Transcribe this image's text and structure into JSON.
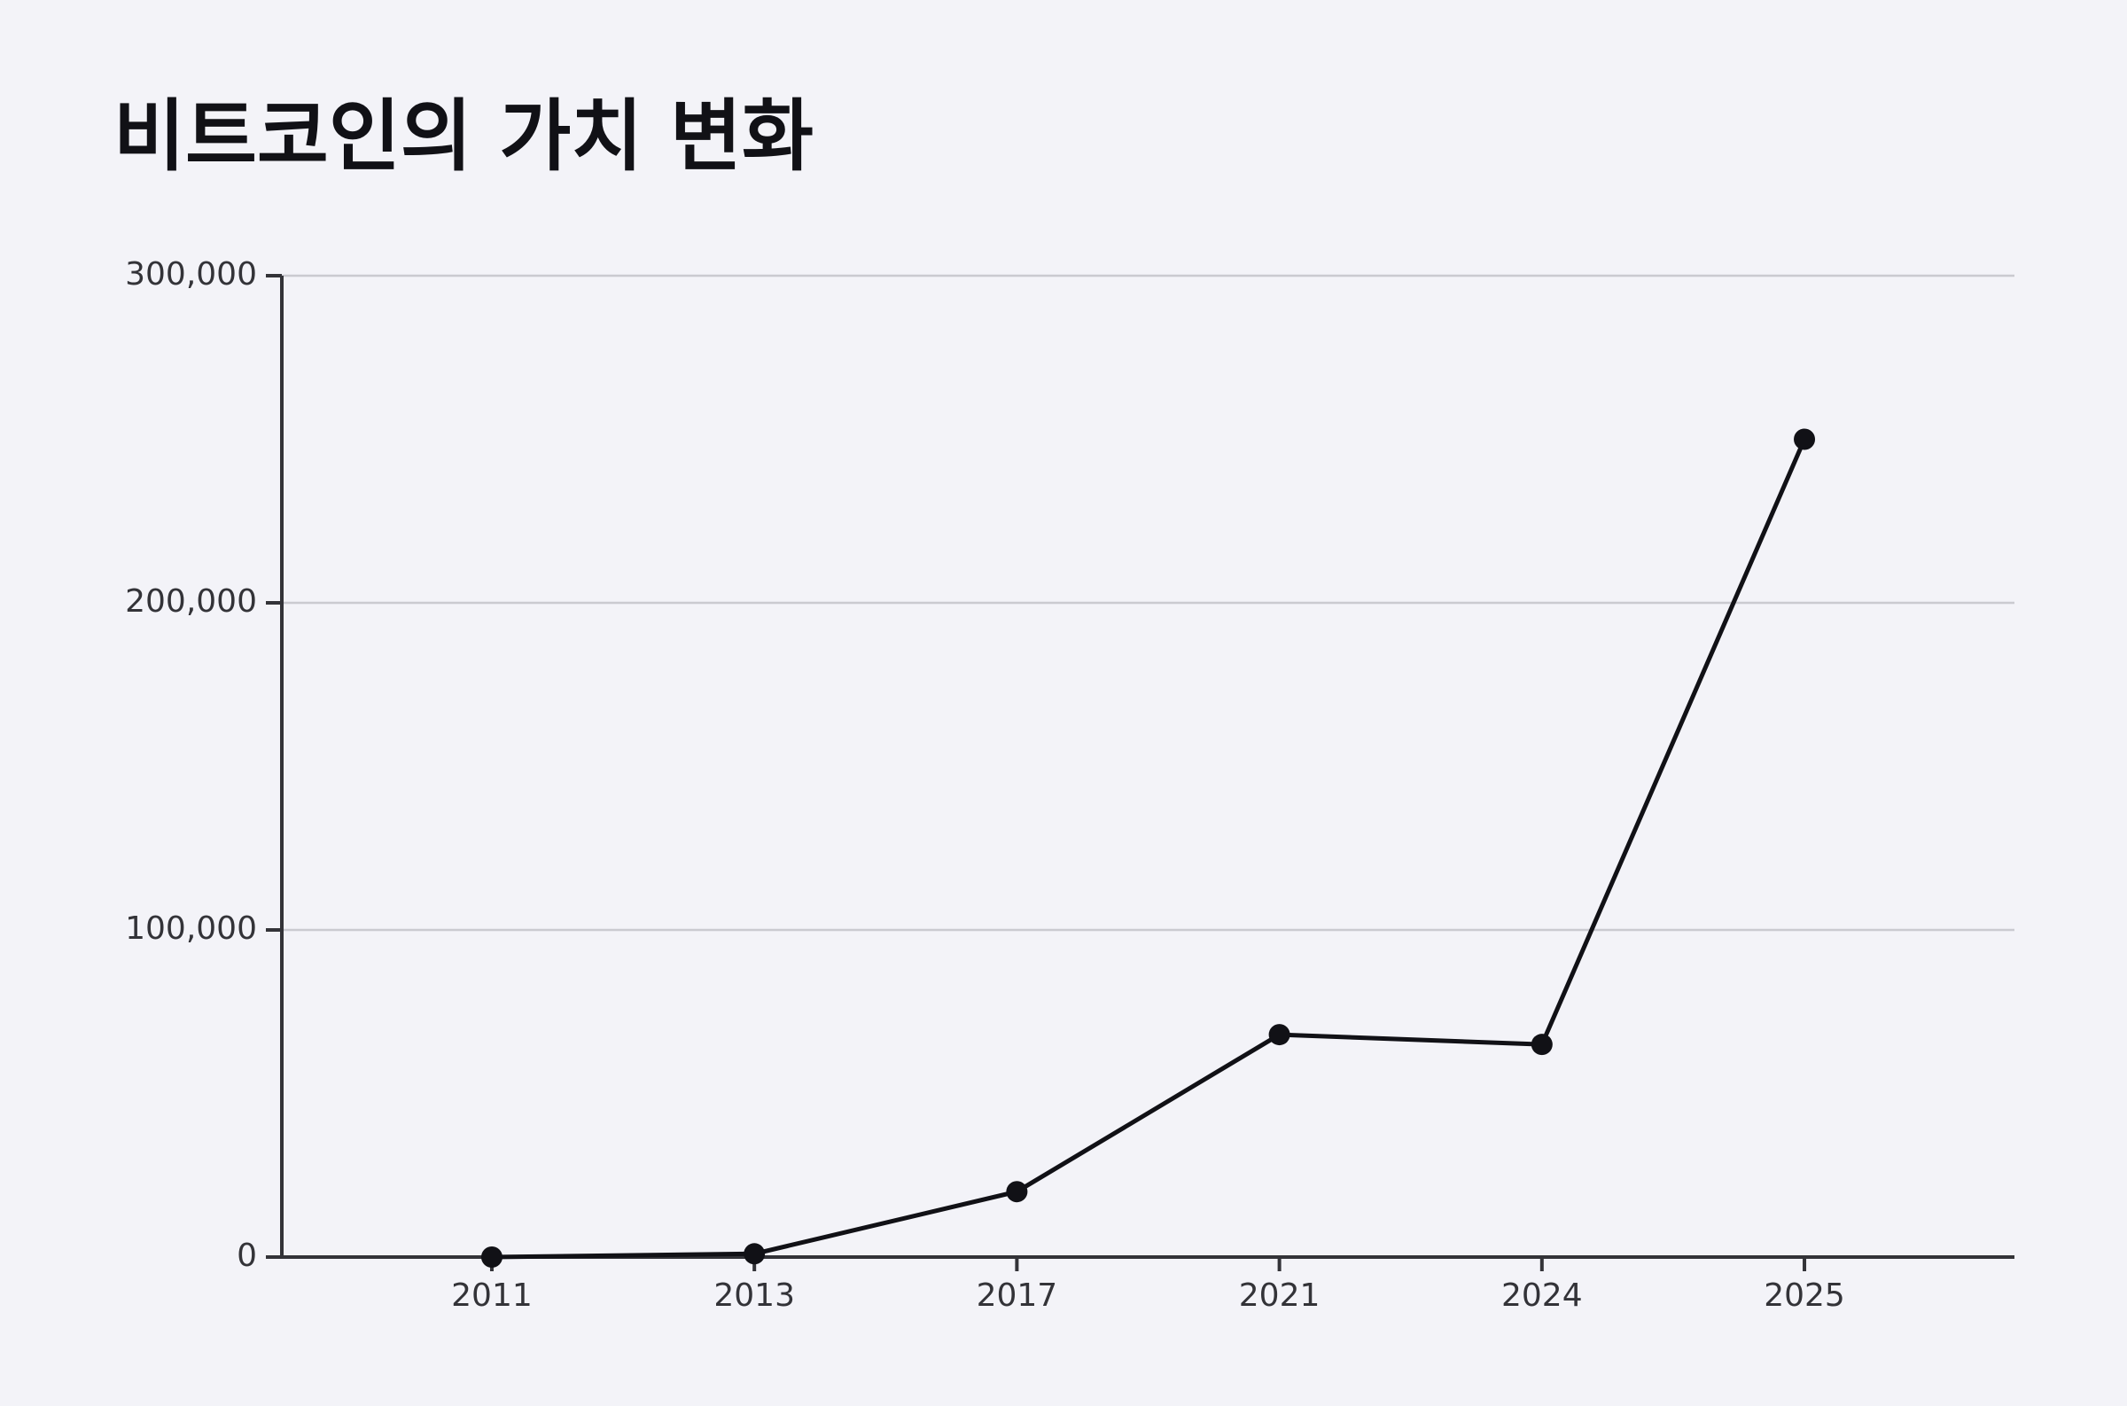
{
  "chart_data": {
    "type": "line",
    "title": "비트코인의 가치 변화",
    "categories": [
      "2011",
      "2013",
      "2017",
      "2021",
      "2024",
      "2025"
    ],
    "values": [
      0,
      1000,
      20000,
      68000,
      65000,
      250000
    ],
    "color": "#111116",
    "ylim": [
      0,
      300000
    ],
    "yticks": [
      0,
      {
        "value": 100000,
        "label": "100,000"
      },
      {
        "value": 200000,
        "label": "200,000"
      },
      {
        "value": 300000,
        "label": "300,000"
      }
    ],
    "grid": true
  }
}
